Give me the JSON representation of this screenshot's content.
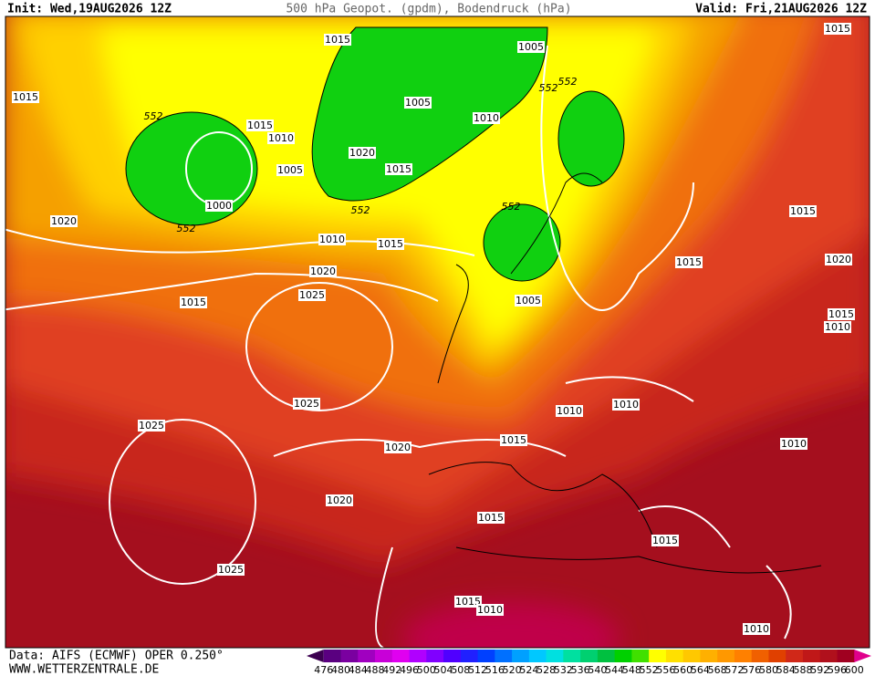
{
  "header": {
    "init": "Init: Wed,19AUG2026 12Z",
    "title": "500 hPa Geopot. (gpdm), Bodendruck (hPa)",
    "valid": "Valid: Fri,21AUG2026 12Z"
  },
  "footer": {
    "source": "Data: AIFS (ECMWF) OPER 0.250°",
    "site": "WWW.WETTERZENTRALE.DE"
  },
  "map_labels": [
    "1015",
    "1005",
    "1015",
    "1015",
    "552",
    "1015",
    "1010",
    "1005",
    "1010",
    "552",
    "552",
    "1020",
    "1015",
    "1005",
    "1000",
    "552",
    "552",
    "552",
    "1020",
    "1010",
    "1015",
    "1015",
    "1020",
    "1015",
    "1020",
    "1025",
    "1015",
    "1005",
    "1015",
    "1010",
    "1025",
    "1010",
    "1010",
    "1025",
    "1015",
    "1020",
    "1010",
    "1020",
    "1015",
    "1015",
    "1025",
    "1015",
    "1010",
    "1010"
  ],
  "legend": {
    "labels": [
      476,
      480,
      484,
      488,
      492,
      496,
      500,
      504,
      508,
      512,
      516,
      520,
      524,
      528,
      532,
      536,
      540,
      544,
      548,
      552,
      556,
      560,
      564,
      568,
      572,
      576,
      580,
      584,
      588,
      592,
      596,
      600
    ],
    "colors": [
      "#3c0050",
      "#5a0080",
      "#7a00a0",
      "#a000c0",
      "#c800d8",
      "#e000f0",
      "#b000ff",
      "#8000ff",
      "#5000ff",
      "#2020ff",
      "#0040ff",
      "#0070ff",
      "#00a0ff",
      "#00c8ff",
      "#00e0e0",
      "#00e0a0",
      "#00d070",
      "#00c040",
      "#00d000",
      "#40e000",
      "#ffff00",
      "#ffe000",
      "#ffc800",
      "#ffb000",
      "#ff9800",
      "#ff8000",
      "#f06000",
      "#e04000",
      "#d02818",
      "#c01818",
      "#b0101c",
      "#a00020",
      "#e0008c"
    ]
  }
}
